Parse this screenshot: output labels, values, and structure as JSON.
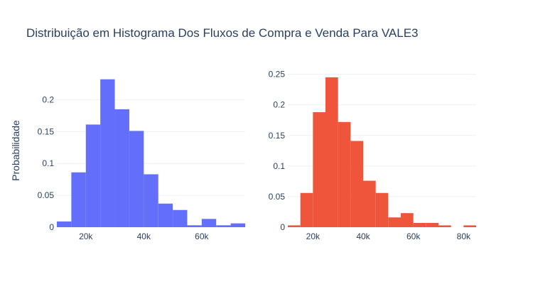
{
  "chart_data": {
    "title": "Distribuição em Histograma Dos Fluxos de Compra e Venda Para VALE3",
    "ylabel": "Probabilidade",
    "panels": [
      {
        "type": "bar",
        "color": "#636efa",
        "bin_width": 5000,
        "xlim": [
          10000,
          75000
        ],
        "ylim": [
          0,
          0.245
        ],
        "xticks": [
          {
            "value": 20000,
            "label": "20k"
          },
          {
            "value": 40000,
            "label": "40k"
          },
          {
            "value": 60000,
            "label": "60k"
          }
        ],
        "yticks": [
          {
            "value": 0,
            "label": "0"
          },
          {
            "value": 0.05,
            "label": "0.05"
          },
          {
            "value": 0.1,
            "label": "0.1"
          },
          {
            "value": 0.15,
            "label": "0.15"
          },
          {
            "value": 0.2,
            "label": "0.2"
          }
        ],
        "bins_start": [
          10000,
          15000,
          20000,
          25000,
          30000,
          35000,
          40000,
          45000,
          50000,
          55000,
          60000,
          65000,
          70000
        ],
        "values": [
          0.009,
          0.086,
          0.161,
          0.232,
          0.185,
          0.151,
          0.083,
          0.037,
          0.027,
          0.003,
          0.013,
          0.003,
          0.006
        ]
      },
      {
        "type": "bar",
        "color": "#ef553b",
        "bin_width": 5000,
        "xlim": [
          10000,
          85000
        ],
        "ylim": [
          0,
          0.26
        ],
        "xticks": [
          {
            "value": 20000,
            "label": "20k"
          },
          {
            "value": 40000,
            "label": "40k"
          },
          {
            "value": 60000,
            "label": "60k"
          },
          {
            "value": 80000,
            "label": "80k"
          }
        ],
        "yticks": [
          {
            "value": 0,
            "label": "0"
          },
          {
            "value": 0.05,
            "label": "0.05"
          },
          {
            "value": 0.1,
            "label": "0.1"
          },
          {
            "value": 0.15,
            "label": "0.15"
          },
          {
            "value": 0.2,
            "label": "0.2"
          },
          {
            "value": 0.25,
            "label": "0.25"
          }
        ],
        "bins_start": [
          10000,
          15000,
          20000,
          25000,
          30000,
          35000,
          40000,
          45000,
          50000,
          55000,
          60000,
          65000,
          70000,
          75000,
          80000
        ],
        "values": [
          0.003,
          0.056,
          0.188,
          0.245,
          0.172,
          0.141,
          0.076,
          0.056,
          0.016,
          0.023,
          0.007,
          0.007,
          0.003,
          0.0,
          0.003
        ]
      }
    ]
  }
}
